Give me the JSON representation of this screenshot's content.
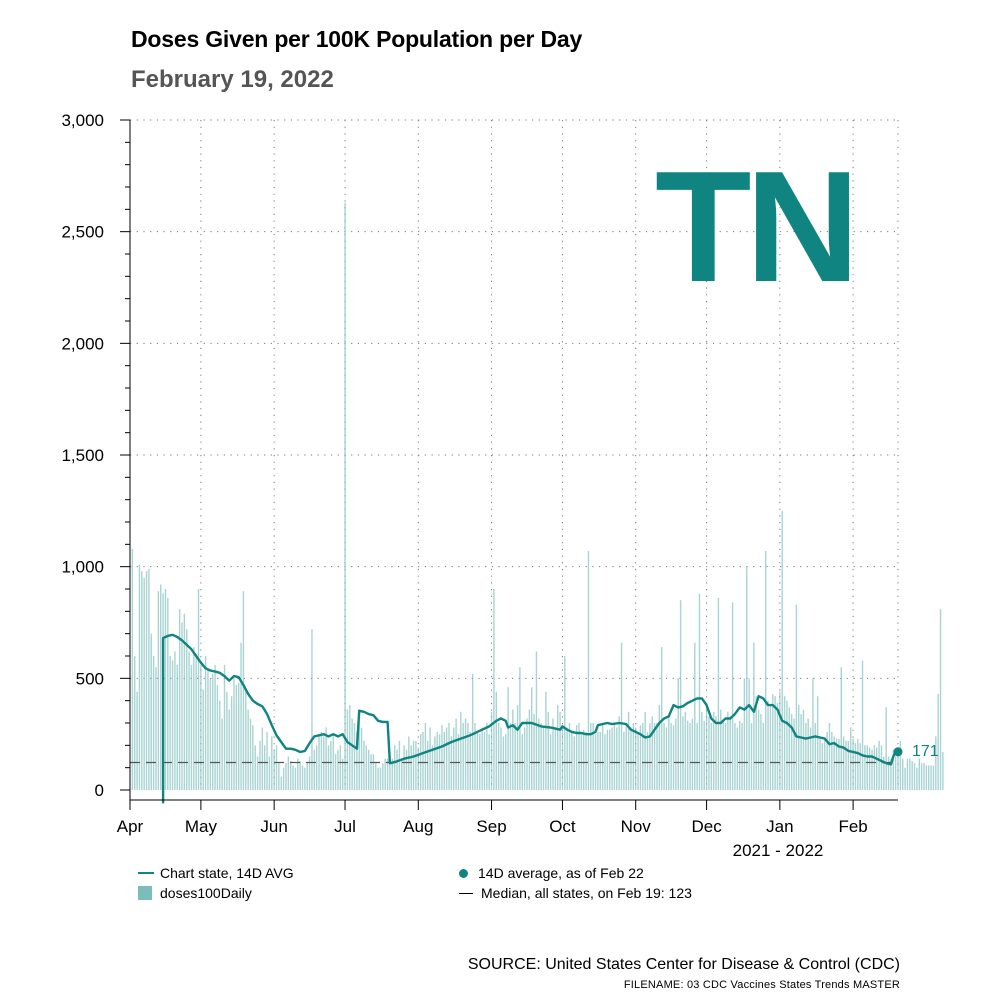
{
  "header": {
    "title": "Doses Given per 100K Population per Day",
    "date": "February 19, 2022"
  },
  "state_label": "TN",
  "footer": {
    "source": "SOURCE: United States Center for Disease & Control (CDC)",
    "filename": "FILENAME: 03 CDC Vaccines States Trends MASTER"
  },
  "colors": {
    "accent": "#0f8480",
    "bars": "#7bbdbb",
    "median": "#555555",
    "subtitle": "#555555"
  },
  "chart_data": {
    "type": "bar",
    "title": "Doses Given per 100K Population per Day",
    "xlabel": "2021 - 2022",
    "ylabel": "",
    "ylim": [
      0,
      3000
    ],
    "y_ticks": [
      0,
      500,
      1000,
      1500,
      2000,
      2500,
      3000
    ],
    "y_tick_labels": [
      "0",
      "500",
      "1,000",
      "1,500",
      "2,000",
      "2,500",
      "3,000"
    ],
    "x_range_days": [
      0,
      325
    ],
    "x_ticks": [
      {
        "label": "Apr",
        "day": 0
      },
      {
        "label": "May",
        "day": 30
      },
      {
        "label": "Jun",
        "day": 61
      },
      {
        "label": "Jul",
        "day": 91
      },
      {
        "label": "Aug",
        "day": 122
      },
      {
        "label": "Sep",
        "day": 153
      },
      {
        "label": "Oct",
        "day": 183
      },
      {
        "label": "Nov",
        "day": 214
      },
      {
        "label": "Dec",
        "day": 244
      },
      {
        "label": "Jan",
        "day": 275
      },
      {
        "label": "Feb",
        "day": 306
      }
    ],
    "series": [
      {
        "name": "doses100Daily",
        "kind": "bar",
        "values": [
          0,
          1080,
          600,
          440,
          1010,
          980,
          950,
          980,
          990,
          700,
          600,
          550,
          890,
          920,
          880,
          900,
          860,
          600,
          580,
          620,
          560,
          810,
          750,
          790,
          720,
          620,
          560,
          640,
          600,
          900,
          560,
          450,
          600,
          540,
          500,
          520,
          560,
          470,
          400,
          320,
          560,
          440,
          360,
          420,
          500,
          470,
          480,
          660,
          890,
          440,
          360,
          320,
          290,
          200,
          150,
          220,
          280,
          200,
          260,
          150,
          240,
          180,
          200,
          120,
          60,
          100,
          120,
          150,
          130,
          110,
          100,
          140,
          130,
          110,
          100,
          120,
          150,
          720,
          180,
          200,
          240,
          260,
          240,
          280,
          200,
          220,
          250,
          160,
          180,
          200,
          140,
          2630,
          360,
          380,
          320,
          300,
          260,
          320,
          280,
          220,
          200,
          180,
          160,
          160,
          120,
          100,
          100,
          120,
          140,
          140,
          170,
          140,
          200,
          180,
          220,
          140,
          200,
          180,
          240,
          200,
          220,
          220,
          190,
          250,
          260,
          300,
          220,
          280,
          200,
          240,
          260,
          250,
          290,
          260,
          280,
          300,
          240,
          280,
          320,
          250,
          350,
          300,
          320,
          300,
          260,
          520,
          300,
          260,
          250,
          280,
          260,
          300,
          250,
          350,
          900,
          440,
          300,
          280,
          240,
          250,
          460,
          300,
          360,
          300,
          380,
          550,
          250,
          280,
          320,
          360,
          460,
          340,
          620,
          320,
          300,
          280,
          440,
          350,
          250,
          320,
          280,
          380,
          350,
          290,
          600,
          280,
          300,
          260,
          240,
          290,
          300,
          260,
          270,
          260,
          1070,
          300,
          300,
          250,
          260,
          260,
          300,
          250,
          270,
          270,
          280,
          300,
          280,
          330,
          660,
          260,
          300,
          350,
          280,
          300,
          280,
          260,
          290,
          300,
          350,
          260,
          300,
          330,
          300,
          300,
          380,
          640,
          300,
          280,
          330,
          300,
          290,
          320,
          500,
          850,
          330,
          350,
          310,
          300,
          320,
          660,
          300,
          880,
          350,
          310,
          380,
          330,
          300,
          350,
          330,
          860,
          360,
          310,
          300,
          350,
          330,
          840,
          300,
          280,
          310,
          300,
          500,
          1000,
          500,
          300,
          660,
          420,
          360,
          340,
          300,
          1070,
          400,
          380,
          430,
          420,
          390,
          440,
          1250,
          420,
          400,
          370,
          340,
          320,
          830,
          380,
          340,
          360,
          300,
          320,
          280,
          500,
          300,
          420,
          230,
          210,
          230,
          260,
          300,
          260,
          240,
          230,
          230,
          550,
          240,
          220,
          220,
          280,
          230,
          210,
          230,
          210,
          580,
          200,
          200,
          190,
          180,
          200,
          190,
          220,
          200,
          150,
          370,
          150,
          140,
          180,
          150,
          160,
          220,
          140,
          100,
          140,
          140,
          130,
          120,
          100,
          140,
          120,
          120,
          110,
          110,
          110,
          110,
          240,
          430,
          810,
          170
        ]
      },
      {
        "name": "Chart state, 14D AVG",
        "kind": "line",
        "points": [
          [
            14,
            -60
          ],
          [
            14,
            680
          ],
          [
            16,
            690
          ],
          [
            18,
            695
          ],
          [
            20,
            685
          ],
          [
            22,
            670
          ],
          [
            24,
            650
          ],
          [
            26,
            630
          ],
          [
            28,
            600
          ],
          [
            30,
            570
          ],
          [
            32,
            545
          ],
          [
            34,
            535
          ],
          [
            36,
            530
          ],
          [
            38,
            525
          ],
          [
            40,
            510
          ],
          [
            42,
            490
          ],
          [
            44,
            510
          ],
          [
            46,
            505
          ],
          [
            48,
            470
          ],
          [
            50,
            430
          ],
          [
            52,
            400
          ],
          [
            54,
            385
          ],
          [
            56,
            375
          ],
          [
            58,
            340
          ],
          [
            60,
            290
          ],
          [
            62,
            245
          ],
          [
            64,
            215
          ],
          [
            66,
            185
          ],
          [
            68,
            185
          ],
          [
            70,
            180
          ],
          [
            72,
            170
          ],
          [
            74,
            175
          ],
          [
            76,
            210
          ],
          [
            78,
            240
          ],
          [
            80,
            245
          ],
          [
            82,
            250
          ],
          [
            84,
            240
          ],
          [
            86,
            250
          ],
          [
            88,
            240
          ],
          [
            90,
            250
          ],
          [
            92,
            215
          ],
          [
            94,
            200
          ],
          [
            96,
            185
          ],
          [
            97,
            355
          ],
          [
            99,
            350
          ],
          [
            101,
            340
          ],
          [
            103,
            335
          ],
          [
            105,
            310
          ],
          [
            107,
            305
          ],
          [
            109,
            305
          ],
          [
            110,
            120
          ],
          [
            112,
            125
          ],
          [
            116,
            140
          ],
          [
            120,
            150
          ],
          [
            124,
            165
          ],
          [
            128,
            180
          ],
          [
            132,
            195
          ],
          [
            136,
            215
          ],
          [
            140,
            230
          ],
          [
            144,
            245
          ],
          [
            148,
            265
          ],
          [
            152,
            285
          ],
          [
            155,
            310
          ],
          [
            157,
            320
          ],
          [
            159,
            310
          ],
          [
            160,
            280
          ],
          [
            162,
            290
          ],
          [
            164,
            270
          ],
          [
            166,
            300
          ],
          [
            170,
            300
          ],
          [
            174,
            285
          ],
          [
            178,
            280
          ],
          [
            180,
            275
          ],
          [
            182,
            270
          ],
          [
            183,
            285
          ],
          [
            185,
            270
          ],
          [
            187,
            260
          ],
          [
            189,
            255
          ],
          [
            191,
            255
          ],
          [
            193,
            250
          ],
          [
            195,
            250
          ],
          [
            197,
            260
          ],
          [
            198,
            290
          ],
          [
            200,
            295
          ],
          [
            202,
            300
          ],
          [
            204,
            295
          ],
          [
            207,
            300
          ],
          [
            210,
            295
          ],
          [
            212,
            270
          ],
          [
            214,
            260
          ],
          [
            216,
            250
          ],
          [
            218,
            235
          ],
          [
            220,
            240
          ],
          [
            222,
            270
          ],
          [
            224,
            300
          ],
          [
            226,
            320
          ],
          [
            228,
            330
          ],
          [
            230,
            380
          ],
          [
            232,
            370
          ],
          [
            234,
            375
          ],
          [
            236,
            390
          ],
          [
            238,
            400
          ],
          [
            240,
            410
          ],
          [
            242,
            410
          ],
          [
            244,
            380
          ],
          [
            246,
            320
          ],
          [
            248,
            300
          ],
          [
            250,
            300
          ],
          [
            252,
            320
          ],
          [
            254,
            320
          ],
          [
            256,
            340
          ],
          [
            258,
            370
          ],
          [
            260,
            360
          ],
          [
            262,
            380
          ],
          [
            264,
            350
          ],
          [
            266,
            420
          ],
          [
            268,
            410
          ],
          [
            270,
            380
          ],
          [
            272,
            380
          ],
          [
            274,
            360
          ],
          [
            276,
            310
          ],
          [
            278,
            300
          ],
          [
            280,
            280
          ],
          [
            282,
            240
          ],
          [
            284,
            235
          ],
          [
            286,
            230
          ],
          [
            288,
            235
          ],
          [
            290,
            240
          ],
          [
            292,
            235
          ],
          [
            294,
            230
          ],
          [
            296,
            205
          ],
          [
            298,
            210
          ],
          [
            300,
            195
          ],
          [
            302,
            190
          ],
          [
            304,
            175
          ],
          [
            306,
            170
          ],
          [
            308,
            165
          ],
          [
            310,
            155
          ],
          [
            312,
            150
          ],
          [
            314,
            150
          ],
          [
            316,
            140
          ],
          [
            318,
            130
          ],
          [
            320,
            120
          ],
          [
            322,
            115
          ],
          [
            323,
            150
          ],
          [
            324,
            171
          ]
        ]
      }
    ],
    "median": {
      "label": "Median, all states, on Feb 19: 123",
      "value": 123
    },
    "latest": {
      "label": "14D average, as of Feb 22",
      "value": 171,
      "display": "171",
      "day": 325
    },
    "legend": [
      {
        "key": "avg",
        "label": "Chart state, 14D AVG"
      },
      {
        "key": "bars",
        "label": "doses100Daily"
      },
      {
        "key": "latest",
        "label": "14D average, as of Feb 22"
      },
      {
        "key": "median",
        "label": "Median, all states, on Feb 19: 123"
      }
    ]
  }
}
